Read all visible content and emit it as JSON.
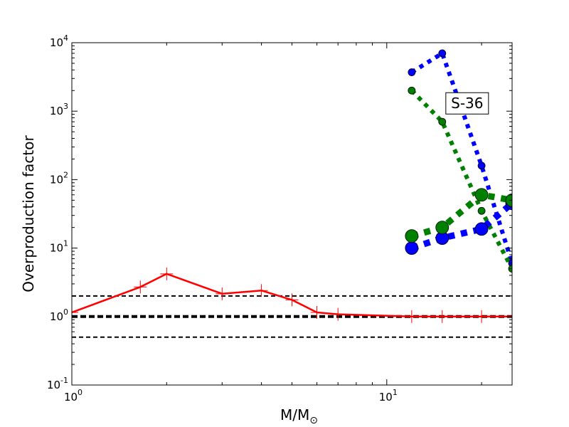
{
  "chart_data": {
    "type": "line",
    "xscale": "log",
    "yscale": "log",
    "xlim": [
      1,
      25
    ],
    "ylim": [
      0.1,
      10000
    ],
    "xlabel": {
      "main": "M/M",
      "sub": "⊙"
    },
    "ylabel": "Overproduction factor",
    "xticks": [
      {
        "value": 1,
        "base": "10",
        "exp": "0"
      },
      {
        "value": 10,
        "base": "10",
        "exp": "1"
      }
    ],
    "yticks": [
      {
        "value": 0.1,
        "base": "10",
        "exp": "-1"
      },
      {
        "value": 1,
        "base": "10",
        "exp": "0"
      },
      {
        "value": 10,
        "base": "10",
        "exp": "1"
      },
      {
        "value": 100,
        "base": "10",
        "exp": "2"
      },
      {
        "value": 1000,
        "base": "10",
        "exp": "3"
      },
      {
        "value": 10000,
        "base": "10",
        "exp": "4"
      }
    ],
    "annotation": {
      "text": "S-36",
      "x": 18,
      "y": 1300
    },
    "reference_lines": [
      {
        "y": 2.0,
        "style": "dashed",
        "color": "#000000",
        "width": 2
      },
      {
        "y": 1.0,
        "style": "dashed",
        "color": "#000000",
        "width": 4
      },
      {
        "y": 0.5,
        "style": "dashed",
        "color": "#000000",
        "width": 2
      }
    ],
    "series": [
      {
        "color": "#ff0000",
        "style": "solid",
        "marker": "plus",
        "points": [
          [
            1.0,
            1.15
          ],
          [
            1.65,
            2.7
          ],
          [
            2.0,
            4.2
          ],
          [
            3.0,
            2.15
          ],
          [
            4.0,
            2.4
          ],
          [
            5.0,
            1.75
          ],
          [
            6.0,
            1.15
          ],
          [
            7.0,
            1.08
          ],
          [
            12.0,
            1.0
          ],
          [
            15.0,
            1.0
          ],
          [
            20.0,
            1.0
          ],
          [
            25.0,
            1.0
          ]
        ]
      },
      {
        "color": "#0000ff",
        "style": "dotted",
        "marker": "circle-small",
        "points": [
          [
            12,
            3700
          ],
          [
            15,
            7000
          ],
          [
            20,
            160
          ],
          [
            25,
            6
          ]
        ]
      },
      {
        "color": "#008000",
        "style": "dotted",
        "marker": "circle-small",
        "points": [
          [
            12,
            2000
          ],
          [
            15,
            700
          ],
          [
            20,
            35
          ],
          [
            25,
            5
          ]
        ]
      },
      {
        "color": "#0000ff",
        "style": "dotted-thick",
        "marker": "circle-large",
        "points": [
          [
            12,
            10
          ],
          [
            15,
            14
          ],
          [
            20,
            19
          ],
          [
            25,
            45
          ]
        ]
      },
      {
        "color": "#008000",
        "style": "dotted-thick",
        "marker": "circle-large",
        "points": [
          [
            12,
            15
          ],
          [
            15,
            20
          ],
          [
            20,
            60
          ],
          [
            25,
            50
          ]
        ]
      }
    ]
  }
}
